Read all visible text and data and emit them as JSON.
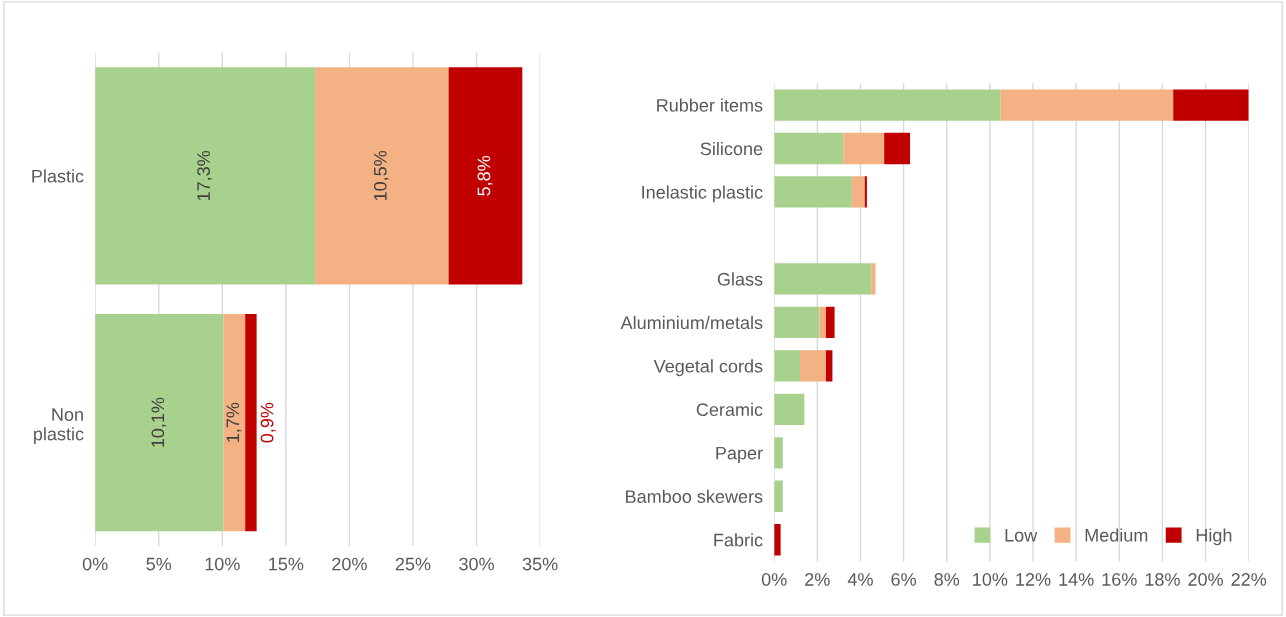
{
  "chart_data": [
    {
      "type": "bar",
      "orientation": "horizontal",
      "stacked": true,
      "categories": [
        "Plastic",
        "Non\nplastic"
      ],
      "xlim": [
        0,
        35
      ],
      "xticks": [
        {
          "value": 0,
          "label": "0%"
        },
        {
          "value": 5,
          "label": "5%"
        },
        {
          "value": 10,
          "label": "10%"
        },
        {
          "value": 15,
          "label": "15%"
        },
        {
          "value": 20,
          "label": "20%"
        },
        {
          "value": 25,
          "label": "25%"
        },
        {
          "value": 30,
          "label": "30%"
        },
        {
          "value": 35,
          "label": "35%"
        }
      ],
      "grid": "x",
      "series": [
        {
          "color": "#a9d18e",
          "values": [
            17.3,
            10.1
          ],
          "value_labels": [
            "17,3%",
            "10,1%"
          ]
        },
        {
          "color": "#f4b183",
          "values": [
            10.5,
            1.7
          ],
          "value_labels": [
            "10,5%",
            "1,7%"
          ]
        },
        {
          "color": "#c00000",
          "values": [
            5.8,
            0.9
          ],
          "value_labels": [
            "5,8%",
            "0,9%"
          ]
        }
      ]
    },
    {
      "type": "bar",
      "orientation": "horizontal",
      "stacked": true,
      "categories": [
        "Rubber items",
        "Silicone",
        "Inelastic plastic",
        null,
        "Glass",
        "Aluminium/metals",
        "Vegetal cords",
        "Ceramic",
        "Paper",
        "Bamboo skewers",
        "Fabric"
      ],
      "xlim": [
        0,
        22
      ],
      "xticks": [
        {
          "value": 0,
          "label": "0%"
        },
        {
          "value": 2,
          "label": "2%"
        },
        {
          "value": 4,
          "label": "4%"
        },
        {
          "value": 6,
          "label": "6%"
        },
        {
          "value": 8,
          "label": "8%"
        },
        {
          "value": 10,
          "label": "10%"
        },
        {
          "value": 12,
          "label": "12%"
        },
        {
          "value": 14,
          "label": "14%"
        },
        {
          "value": 16,
          "label": "16%"
        },
        {
          "value": 18,
          "label": "18%"
        },
        {
          "value": 20,
          "label": "20%"
        },
        {
          "value": 22,
          "label": "22%"
        }
      ],
      "grid": "x",
      "legend": "bottom right",
      "series": [
        {
          "name": "Low",
          "color": "#a9d18e",
          "values": [
            10.5,
            3.2,
            3.6,
            null,
            4.5,
            2.1,
            1.2,
            1.4,
            0.4,
            0.4,
            null
          ]
        },
        {
          "name": "Medium",
          "color": "#f4b183",
          "values": [
            8.0,
            1.9,
            0.6,
            null,
            0.2,
            0.3,
            1.2,
            null,
            null,
            null,
            null
          ]
        },
        {
          "name": "High",
          "color": "#c00000",
          "values": [
            3.5,
            1.2,
            0.1,
            null,
            null,
            0.4,
            0.3,
            null,
            null,
            null,
            0.3
          ]
        }
      ]
    }
  ]
}
